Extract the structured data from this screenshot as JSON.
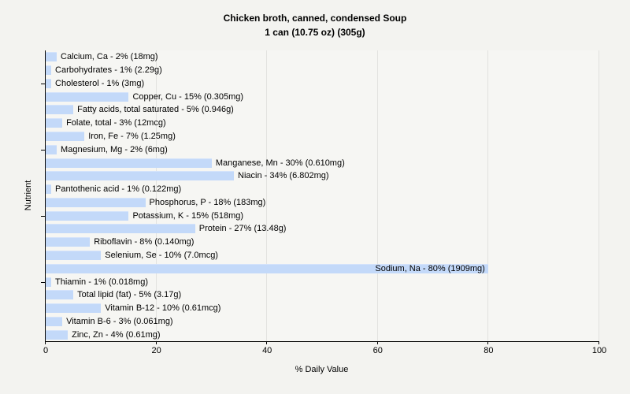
{
  "page": {
    "background_color": "#f3f3f0",
    "plot_background_color": "#f6f6f3",
    "gridline_color": "#e2e2df",
    "axis_color": "#000000"
  },
  "chart_data": {
    "type": "bar",
    "orientation": "horizontal",
    "title": "Chicken broth, canned, condensed Soup",
    "subtitle": "1 can (10.75 oz) (305g)",
    "xlabel": "% Daily Value",
    "ylabel": "Nutrient",
    "xlim": [
      0,
      100
    ],
    "x_ticks": [
      0,
      20,
      40,
      60,
      80,
      100
    ],
    "grid": true,
    "legend_position": "none",
    "bar_color": "#c3d9f9",
    "categories": [
      "Calcium, Ca",
      "Carbohydrates",
      "Cholesterol",
      "Copper, Cu",
      "Fatty acids, total saturated",
      "Folate, total",
      "Iron, Fe",
      "Magnesium, Mg",
      "Manganese, Mn",
      "Niacin",
      "Pantothenic acid",
      "Phosphorus, P",
      "Potassium, K",
      "Protein",
      "Riboflavin",
      "Selenium, Se",
      "Sodium, Na",
      "Thiamin",
      "Total lipid (fat)",
      "Vitamin B-12",
      "Vitamin B-6",
      "Zinc, Zn"
    ],
    "values": [
      2,
      1,
      1,
      15,
      5,
      3,
      7,
      2,
      30,
      34,
      1,
      18,
      15,
      27,
      8,
      10,
      80,
      1,
      5,
      10,
      3,
      4
    ],
    "amounts": [
      "18mg",
      "2.29g",
      "3mg",
      "0.305mg",
      "0.946g",
      "12mcg",
      "1.25mg",
      "6mg",
      "0.610mg",
      "6.802mg",
      "0.122mg",
      "183mg",
      "518mg",
      "13.48g",
      "0.140mg",
      "7.0mcg",
      "1909mg",
      "0.018mg",
      "3.17g",
      "0.61mcg",
      "0.061mg",
      "0.61mg"
    ],
    "bar_labels": [
      "Calcium, Ca - 2% (18mg)",
      "Carbohydrates - 1% (2.29g)",
      "Cholesterol - 1% (3mg)",
      "Copper, Cu - 15% (0.305mg)",
      "Fatty acids, total saturated - 5% (0.946g)",
      "Folate, total - 3% (12mcg)",
      "Iron, Fe - 7% (1.25mg)",
      "Magnesium, Mg - 2% (6mg)",
      "Manganese, Mn - 30% (0.610mg)",
      "Niacin - 34% (6.802mg)",
      "Pantothenic acid - 1% (0.122mg)",
      "Phosphorus, P - 18% (183mg)",
      "Potassium, K - 15% (518mg)",
      "Protein - 27% (13.48g)",
      "Riboflavin - 8% (0.140mg)",
      "Selenium, Se - 10% (7.0mcg)",
      "Sodium, Na - 80% (1909mg)",
      "Thiamin - 1% (0.018mg)",
      "Total lipid (fat) - 5% (3.17g)",
      "Vitamin B-12 - 10% (0.61mcg)",
      "Vitamin B-6 - 3% (0.061mg)",
      "Zinc, Zn - 4% (0.61mg)"
    ],
    "y_tick_indices": [
      2,
      7,
      12,
      17
    ]
  }
}
